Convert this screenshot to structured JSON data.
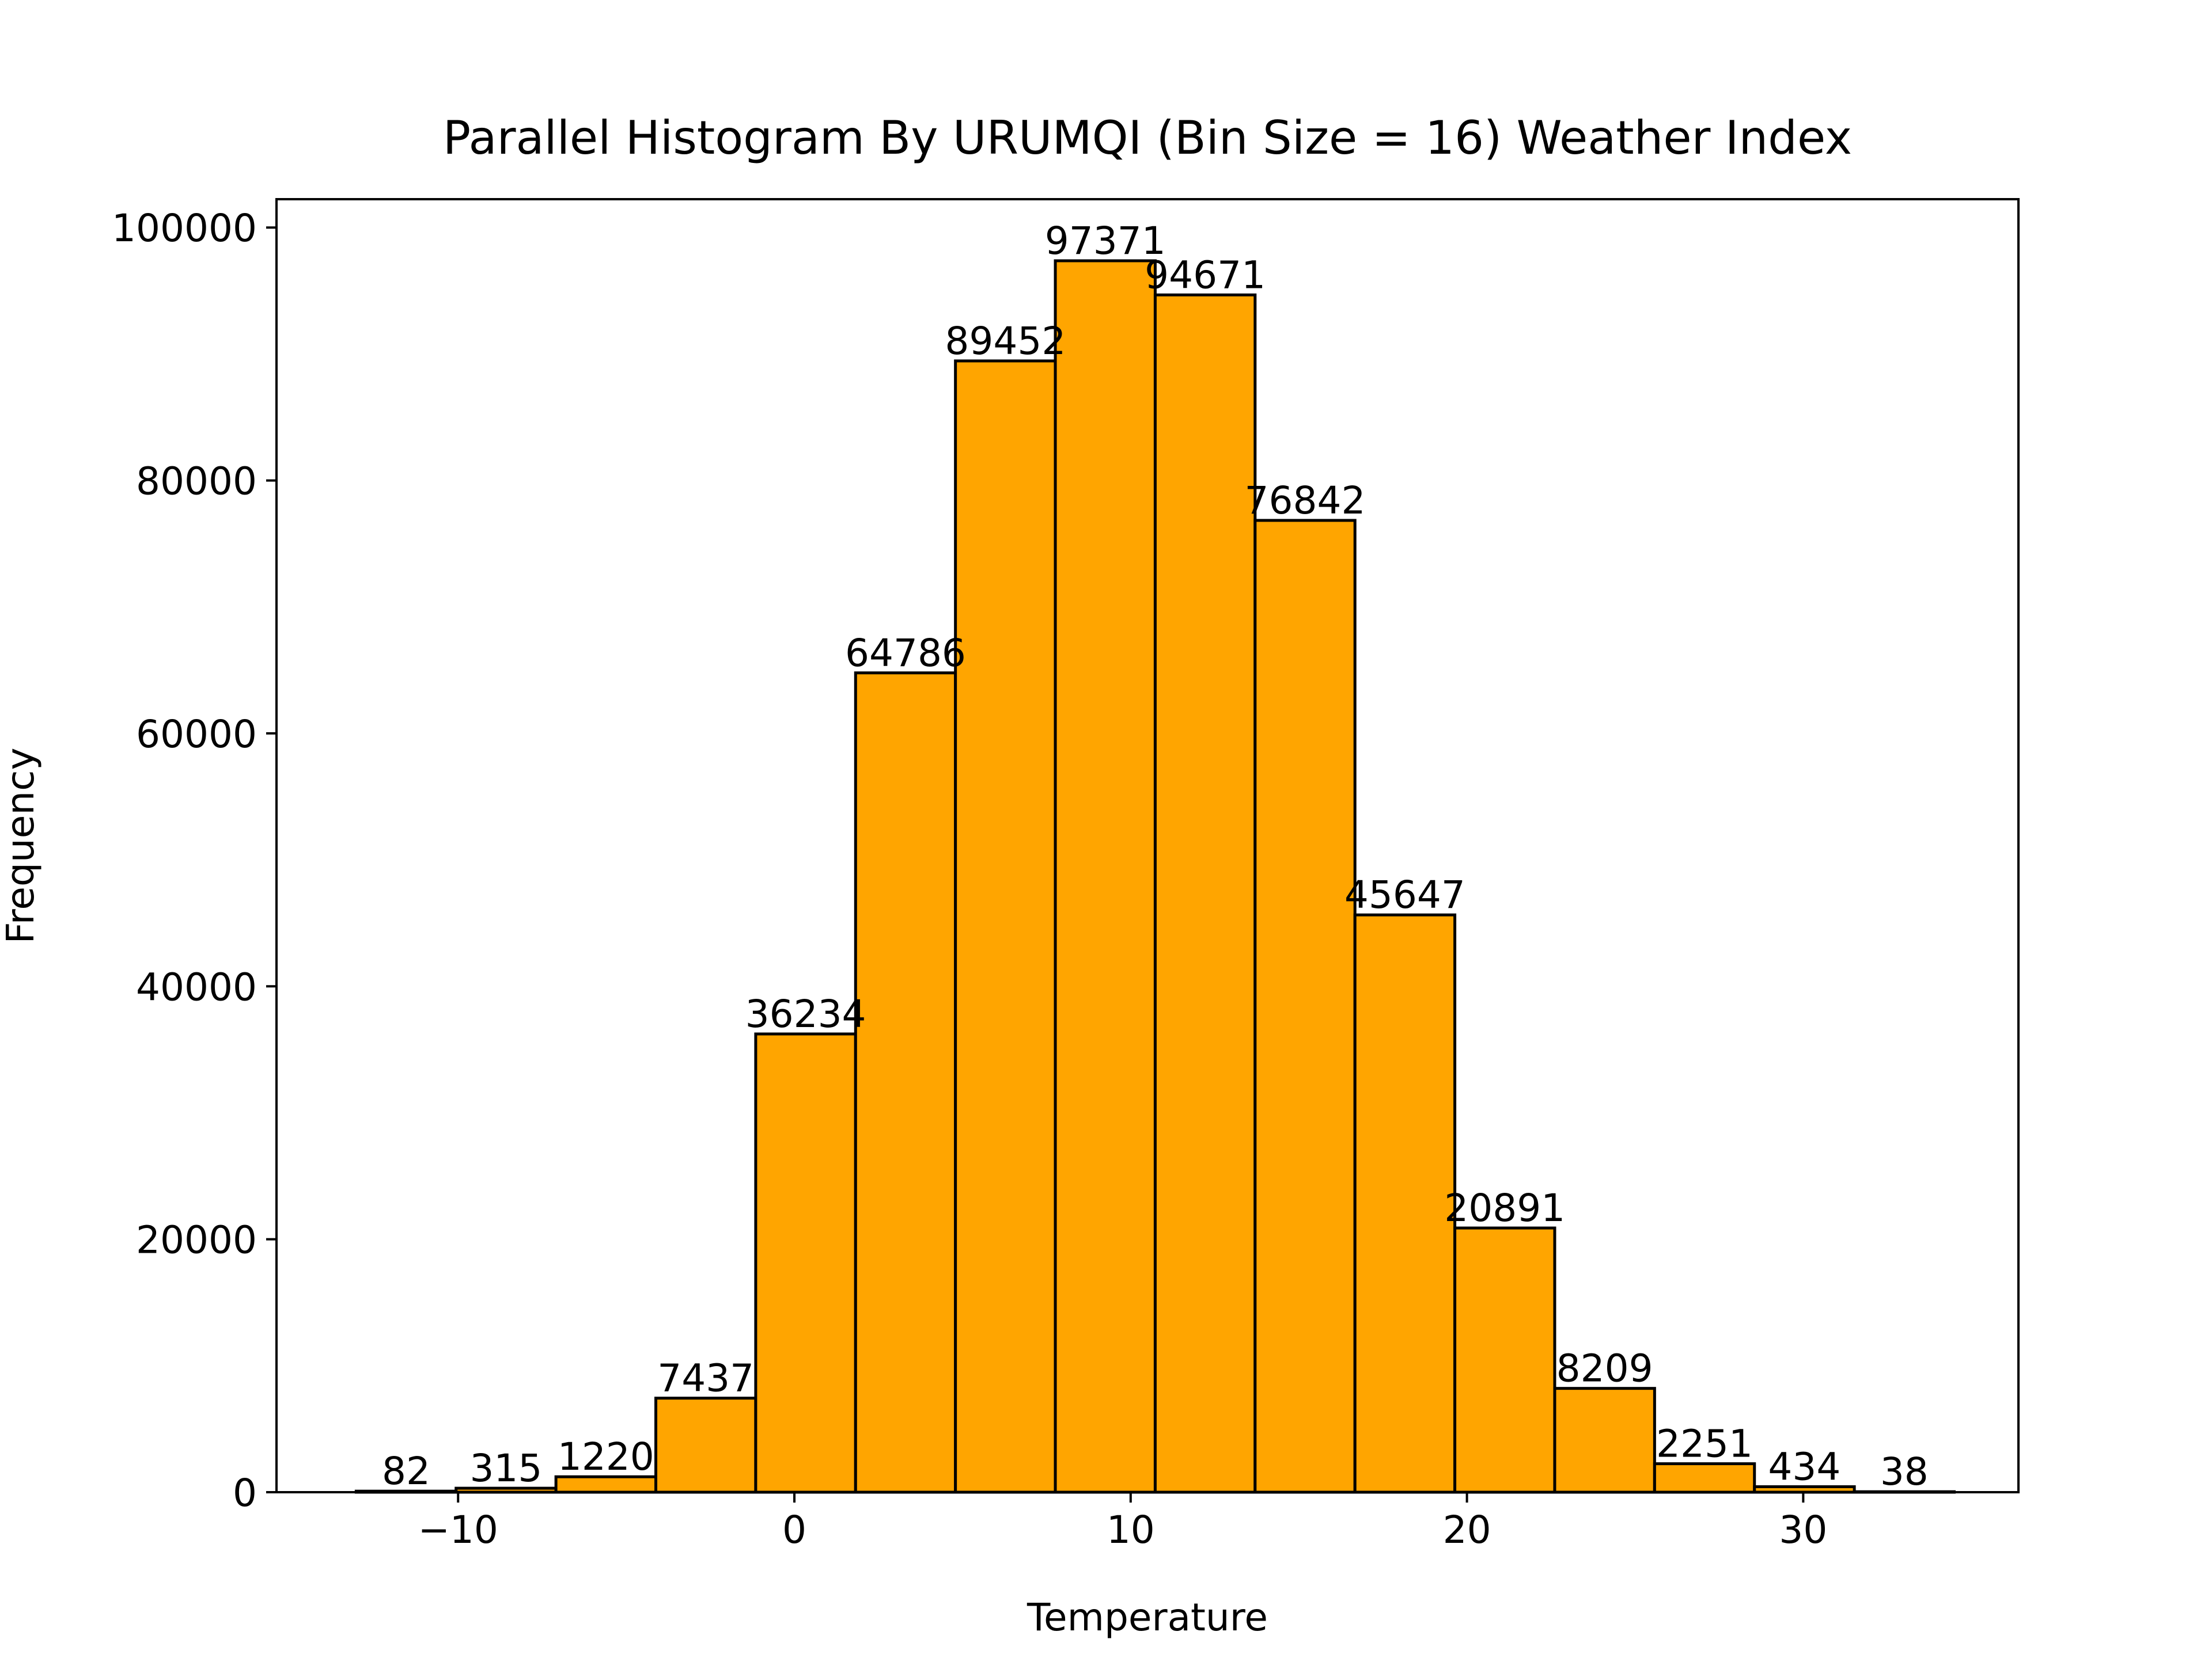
{
  "chart_data": {
    "type": "bar",
    "title": "Parallel Histogram By URUMQI (Bin Size = 16) Weather Index",
    "xlabel": "Temperature",
    "ylabel": "Frequency",
    "bins": [
      {
        "start": -13.03,
        "end": -10.06,
        "value": 82,
        "label": "82"
      },
      {
        "start": -10.06,
        "end": -7.09,
        "value": 315,
        "label": "315"
      },
      {
        "start": -7.09,
        "end": -4.12,
        "value": 1220,
        "label": "1220"
      },
      {
        "start": -4.12,
        "end": -1.15,
        "value": 7437,
        "label": "7437"
      },
      {
        "start": -1.15,
        "end": 1.82,
        "value": 36234,
        "label": "36234"
      },
      {
        "start": 1.82,
        "end": 4.79,
        "value": 64786,
        "label": "64786"
      },
      {
        "start": 4.79,
        "end": 7.76,
        "value": 89452,
        "label": "89452"
      },
      {
        "start": 7.76,
        "end": 10.73,
        "value": 97371,
        "label": "97371"
      },
      {
        "start": 10.73,
        "end": 13.7,
        "value": 94671,
        "label": "94671"
      },
      {
        "start": 13.7,
        "end": 16.67,
        "value": 76842,
        "label": "76842"
      },
      {
        "start": 16.67,
        "end": 19.64,
        "value": 45647,
        "label": "45647"
      },
      {
        "start": 19.64,
        "end": 22.61,
        "value": 20891,
        "label": "20891"
      },
      {
        "start": 22.61,
        "end": 25.58,
        "value": 8209,
        "label": "8209"
      },
      {
        "start": 25.58,
        "end": 28.55,
        "value": 2251,
        "label": "2251"
      },
      {
        "start": 28.55,
        "end": 31.52,
        "value": 434,
        "label": "434"
      },
      {
        "start": 31.52,
        "end": 34.49,
        "value": 38,
        "label": "38"
      }
    ],
    "xlim": [
      -15.4,
      36.4
    ],
    "ylim": [
      0,
      102240
    ],
    "xticks": [
      {
        "value": -10,
        "label": "−10"
      },
      {
        "value": 0,
        "label": "0"
      },
      {
        "value": 10,
        "label": "10"
      },
      {
        "value": 20,
        "label": "20"
      },
      {
        "value": 30,
        "label": "30"
      }
    ],
    "yticks": [
      {
        "value": 0,
        "label": "0"
      },
      {
        "value": 20000,
        "label": "20000"
      },
      {
        "value": 40000,
        "label": "40000"
      },
      {
        "value": 60000,
        "label": "60000"
      },
      {
        "value": 80000,
        "label": "80000"
      },
      {
        "value": 100000,
        "label": "100000"
      }
    ],
    "bar_color": "#FFA500",
    "edge_color": "#000000",
    "grid": false,
    "legend": false
  }
}
